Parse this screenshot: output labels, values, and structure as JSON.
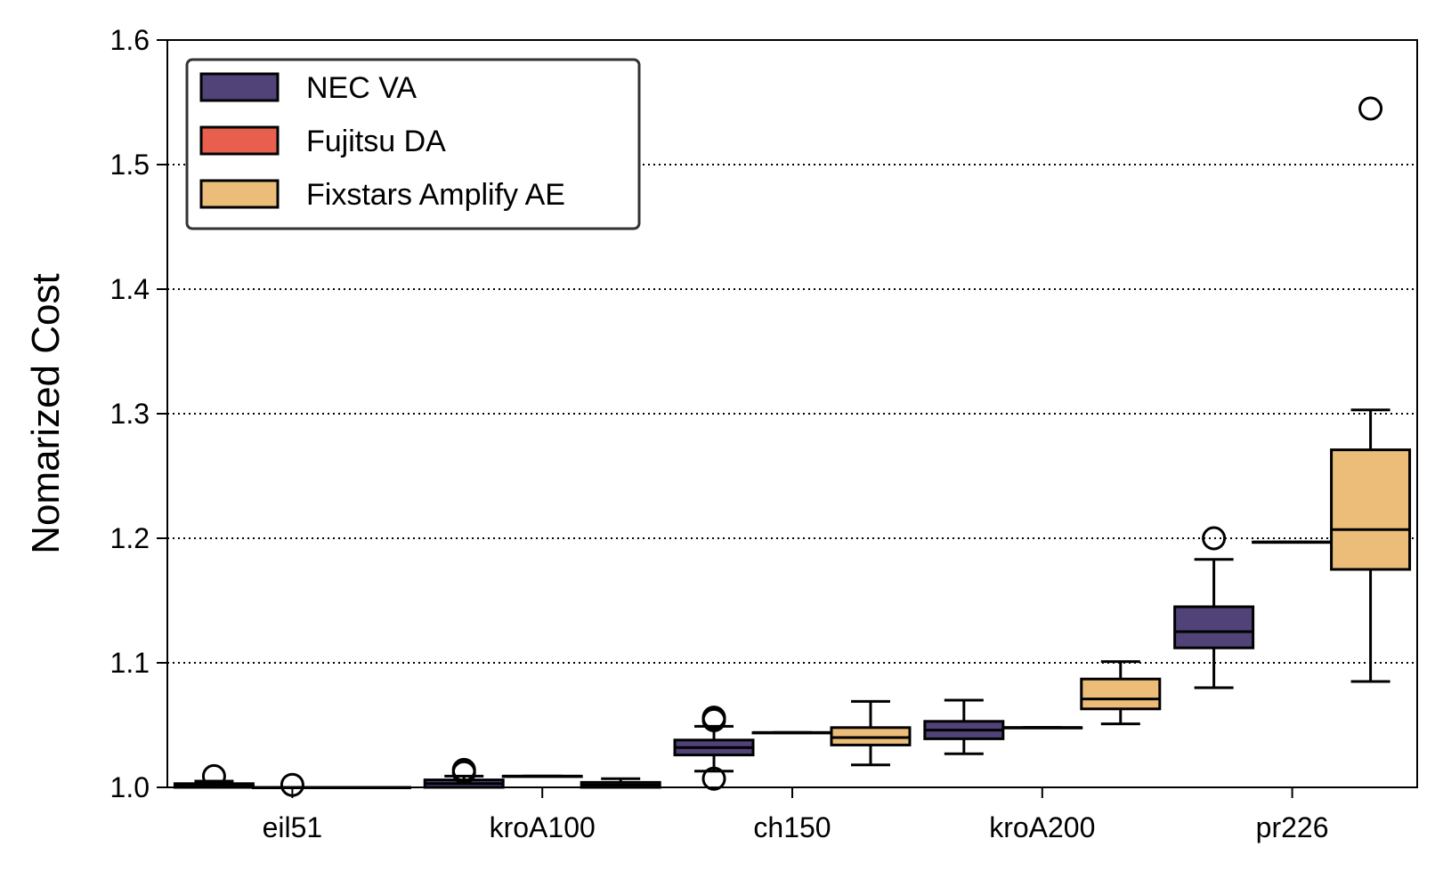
{
  "chart_data": {
    "type": "box",
    "title": "",
    "xlabel": "",
    "ylabel": "Nomarized Cost",
    "ylim": [
      1.0,
      1.6
    ],
    "yticks": [
      "1.0",
      "1.1",
      "1.2",
      "1.3",
      "1.4",
      "1.5",
      "1.6"
    ],
    "categories": [
      "eil51",
      "kroA100",
      "ch150",
      "kroA200",
      "pr226"
    ],
    "grid": "horizontal dotted",
    "legend_position": "top-left",
    "series": [
      {
        "name": "NEC VA",
        "color": "#514278",
        "boxes": [
          {
            "whislo": 1.0,
            "q1": 1.0,
            "med": 1.001,
            "q3": 1.003,
            "whishi": 1.005,
            "fliers": [
              1.009
            ]
          },
          {
            "whislo": 1.0,
            "q1": 1.0,
            "med": 1.003,
            "q3": 1.006,
            "whishi": 1.009,
            "fliers": [
              1.012,
              1.014
            ]
          },
          {
            "whislo": 1.013,
            "q1": 1.026,
            "med": 1.032,
            "q3": 1.038,
            "whishi": 1.049,
            "fliers": [
              1.007,
              1.054,
              1.056
            ]
          },
          {
            "whislo": 1.027,
            "q1": 1.039,
            "med": 1.046,
            "q3": 1.053,
            "whishi": 1.07,
            "fliers": []
          },
          {
            "whislo": 1.08,
            "q1": 1.112,
            "med": 1.125,
            "q3": 1.145,
            "whishi": 1.183,
            "fliers": [
              1.2
            ]
          }
        ]
      },
      {
        "name": "Fujitsu DA",
        "color": "#e8604d",
        "boxes": [
          {
            "whislo": 1.0,
            "q1": 1.0,
            "med": 1.0,
            "q3": 1.0,
            "whishi": 1.0,
            "fliers": [
              1.002
            ]
          },
          {
            "whislo": 1.009,
            "q1": 1.009,
            "med": 1.009,
            "q3": 1.009,
            "whishi": 1.009,
            "fliers": []
          },
          {
            "whislo": 1.044,
            "q1": 1.044,
            "med": 1.044,
            "q3": 1.044,
            "whishi": 1.044,
            "fliers": []
          },
          {
            "whislo": 1.048,
            "q1": 1.048,
            "med": 1.048,
            "q3": 1.048,
            "whishi": 1.048,
            "fliers": []
          },
          {
            "whislo": 1.197,
            "q1": 1.197,
            "med": 1.197,
            "q3": 1.197,
            "whishi": 1.197,
            "fliers": []
          }
        ]
      },
      {
        "name": "Fixstars Amplify AE",
        "color": "#ebbd79",
        "boxes": [
          {
            "whislo": 1.0,
            "q1": 1.0,
            "med": 1.0,
            "q3": 1.0,
            "whishi": 1.0,
            "fliers": []
          },
          {
            "whislo": 1.0,
            "q1": 1.0,
            "med": 1.002,
            "q3": 1.004,
            "whishi": 1.007,
            "fliers": []
          },
          {
            "whislo": 1.018,
            "q1": 1.034,
            "med": 1.04,
            "q3": 1.048,
            "whishi": 1.069,
            "fliers": []
          },
          {
            "whislo": 1.051,
            "q1": 1.063,
            "med": 1.071,
            "q3": 1.087,
            "whishi": 1.101,
            "fliers": []
          },
          {
            "whislo": 1.085,
            "q1": 1.175,
            "med": 1.207,
            "q3": 1.271,
            "whishi": 1.303,
            "fliers": [
              1.545
            ]
          }
        ]
      }
    ]
  }
}
